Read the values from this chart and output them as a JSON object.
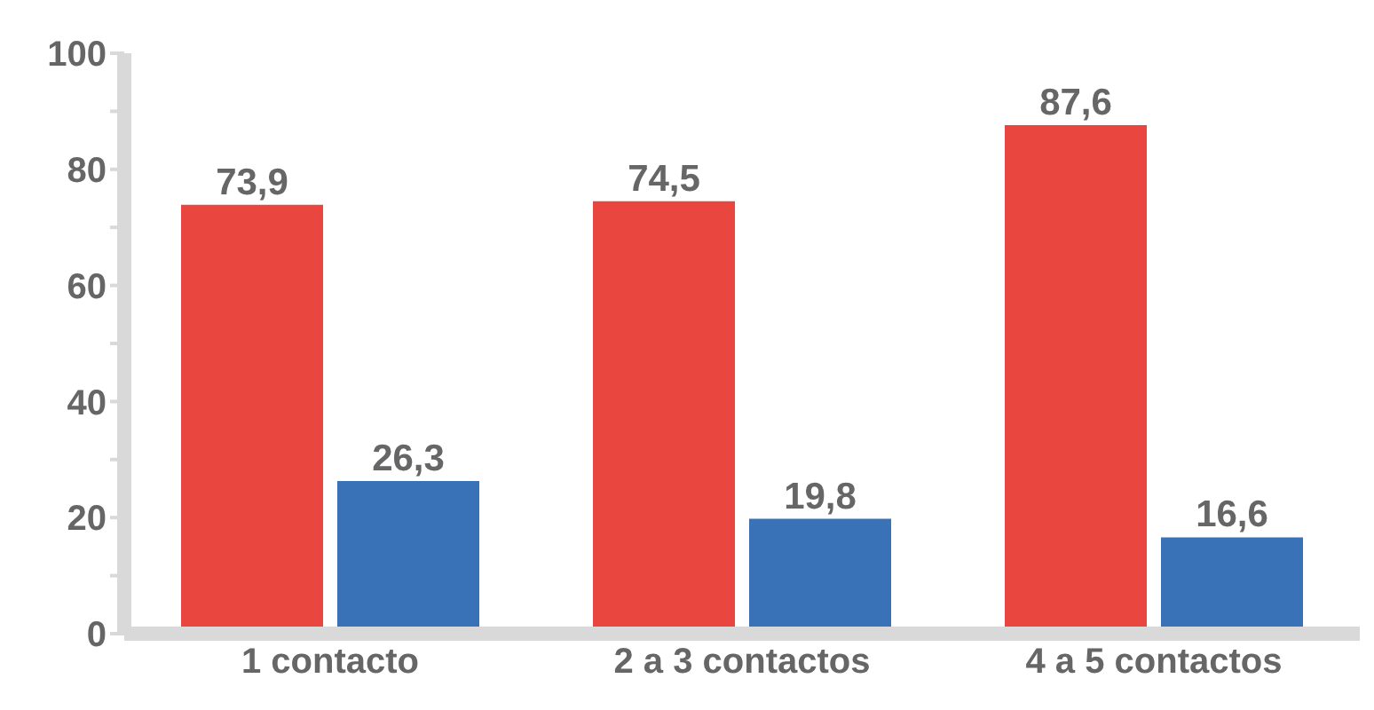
{
  "chart_data": {
    "type": "bar",
    "categories": [
      "1 contacto",
      "2 a 3 contactos",
      "4 a 5 contactos"
    ],
    "series": [
      {
        "color": "#e8463f",
        "values": [
          73.9,
          74.5,
          87.6
        ],
        "value_labels": [
          "73,9",
          "74,5",
          "87,6"
        ]
      },
      {
        "color": "#3a72b8",
        "values": [
          26.3,
          19.8,
          16.6
        ],
        "value_labels": [
          "26,3",
          "19,8",
          "16,6"
        ]
      }
    ],
    "ylim": [
      0,
      100
    ],
    "yticks": [
      0,
      {
        "value": 10,
        "label": null
      },
      20,
      {
        "value": 30,
        "label": null
      },
      40,
      {
        "value": 50,
        "label": null
      },
      60,
      {
        "value": 70,
        "label": null
      },
      80,
      {
        "value": 90,
        "label": null
      },
      100
    ]
  }
}
